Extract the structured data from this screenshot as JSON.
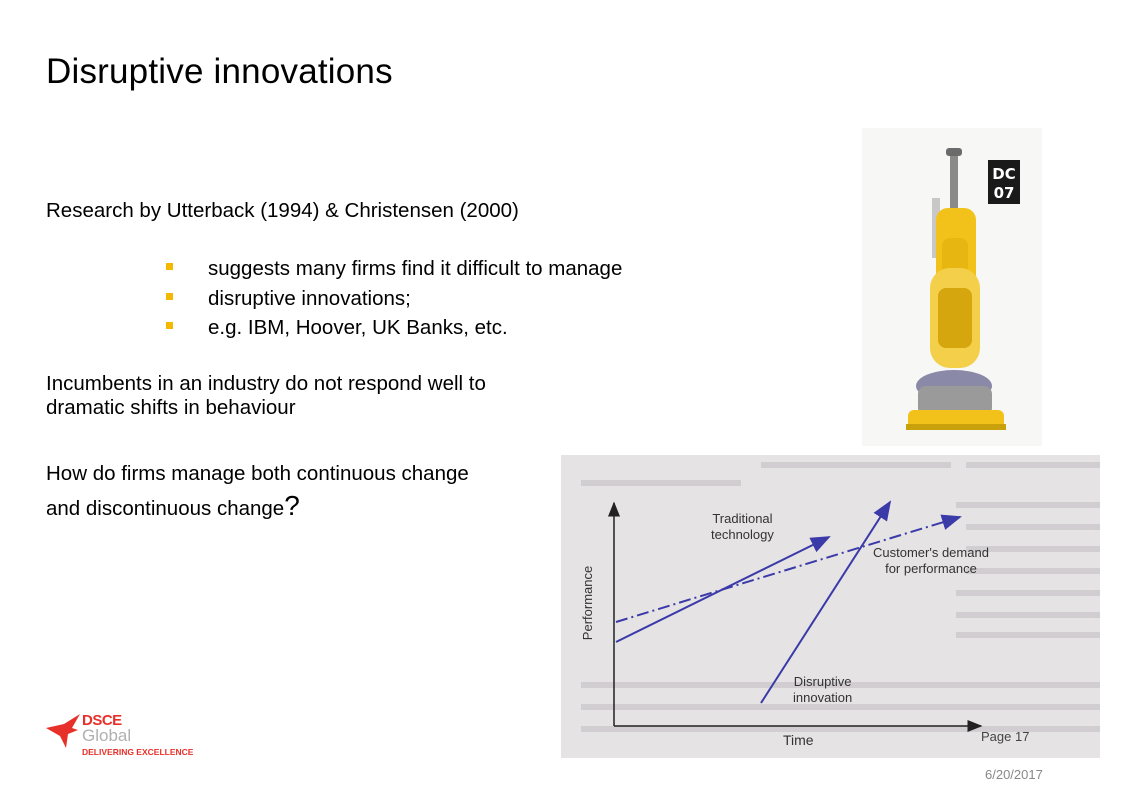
{
  "slide": {
    "title": "Disruptive  innovations",
    "research_line": "Research by Utterback (1994) & Christensen (2000)",
    "bullets": [
      "suggests many firms find it difficult to manage",
      "disruptive innovations;",
      "e.g. IBM, Hoover, UK Banks, etc."
    ],
    "incumbents_line1": "Incumbents in an industry do not respond well to",
    "incumbents_line2": "dramatic shifts in behaviour",
    "question_line1": "How do firms manage both continuous change",
    "question_line2": "and discontinuous change",
    "question_mark": "?",
    "bullet_color": "#f5b800"
  },
  "vacuum_image": {
    "badge_line1": "DC",
    "badge_line2": "07",
    "body_color": "#f2c21a"
  },
  "figure": {
    "y_axis_label": "Performance",
    "x_axis_label": "Time",
    "traditional_label_line1": "Traditional",
    "traditional_label_line2": "technology",
    "demand_label_line1": "Customer's demand",
    "demand_label_line2": "for performance",
    "disruptive_label_line1": "Disruptive",
    "disruptive_label_line2": "innovation",
    "arrow_color": "#3a3aa8"
  },
  "footer": {
    "logo_name": "DSCE",
    "logo_sub": "Global",
    "logo_tagline": "DELIVERING EXCELLENCE",
    "page_label": "Page",
    "page_number": "17",
    "date": "6/20/2017"
  }
}
